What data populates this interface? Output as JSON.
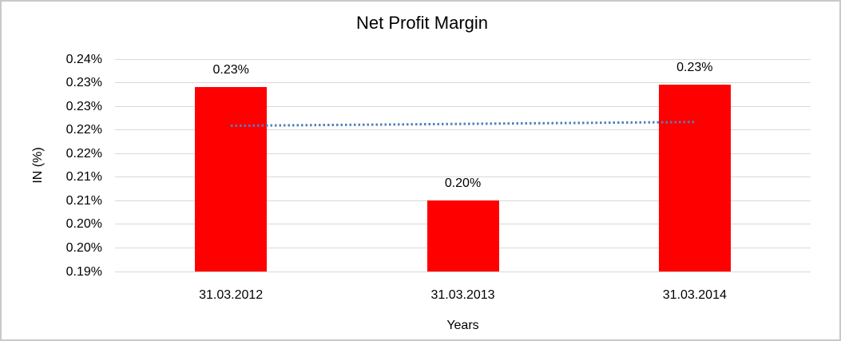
{
  "window": {
    "background_color": "#ffffff",
    "border_color": "#c9c9c9"
  },
  "chart_data": {
    "type": "bar",
    "title": "Net Profit Margin",
    "xlabel": "Years",
    "ylabel": "IN (%)",
    "categories": [
      "31.03.2012",
      "31.03.2013",
      "31.03.2014"
    ],
    "values": [
      0.229,
      0.205,
      0.2296
    ],
    "data_labels": [
      "0.23%",
      "0.20%",
      "0.23%"
    ],
    "value_unit": "percent",
    "ylim": [
      0.19,
      0.235
    ],
    "ytick_step": 0.005,
    "ytick_labels_top_to_bottom": [
      "0.24%",
      "0.23%",
      "0.23%",
      "0.22%",
      "0.22%",
      "0.21%",
      "0.21%",
      "0.20%",
      "0.20%",
      "0.19%"
    ],
    "grid": true,
    "legend": false,
    "bar_color": "#ff0000",
    "gridline_color": "#d9d9d9",
    "text_color": "#000000",
    "trendline": {
      "style": "dotted",
      "color": "#4f81bd",
      "start_value": 0.2208,
      "end_value": 0.2216
    }
  }
}
